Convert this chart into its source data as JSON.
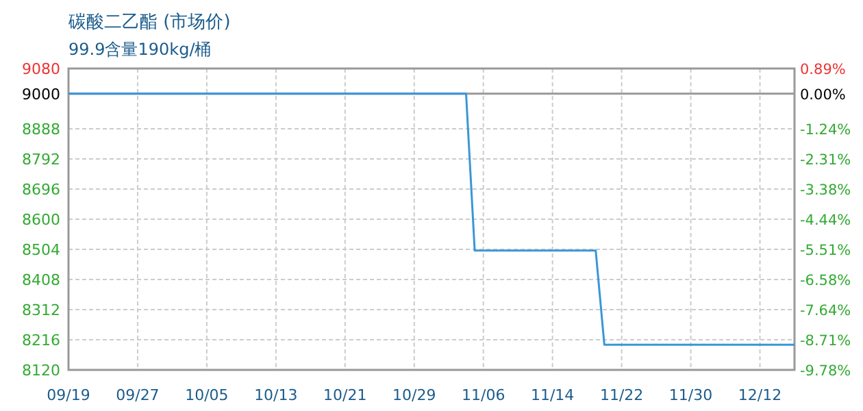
{
  "chart_data": {
    "type": "line",
    "title": "碳酸二乙酯 (市场价)",
    "subtitle": "99.9含量190kg/桶",
    "categories": [
      "09/19",
      null,
      null,
      null,
      null,
      null,
      null,
      null,
      "09/27",
      null,
      null,
      null,
      null,
      null,
      null,
      null,
      "10/05",
      null,
      null,
      null,
      null,
      null,
      null,
      null,
      "10/13",
      null,
      null,
      null,
      null,
      null,
      null,
      null,
      "10/21",
      null,
      null,
      null,
      null,
      null,
      null,
      null,
      "10/29",
      null,
      null,
      null,
      null,
      null,
      null,
      null,
      "11/06",
      null,
      null,
      null,
      null,
      null,
      null,
      null,
      "11/14",
      null,
      null,
      null,
      null,
      null,
      null,
      null,
      "11/22",
      null,
      null,
      null,
      null,
      null,
      null,
      null,
      "11/30",
      null,
      null,
      null,
      null,
      null,
      null,
      null,
      "12/12",
      null,
      null,
      null,
      null
    ],
    "series": [
      {
        "color": "#3a96d8",
        "values": [
          9000,
          9000,
          9000,
          9000,
          9000,
          9000,
          9000,
          9000,
          9000,
          9000,
          9000,
          9000,
          9000,
          9000,
          9000,
          9000,
          9000,
          9000,
          9000,
          9000,
          9000,
          9000,
          9000,
          9000,
          9000,
          9000,
          9000,
          9000,
          9000,
          9000,
          9000,
          9000,
          9000,
          9000,
          9000,
          9000,
          9000,
          9000,
          9000,
          9000,
          9000,
          9000,
          9000,
          9000,
          9000,
          9000,
          9000,
          8500,
          8500,
          8500,
          8500,
          8500,
          8500,
          8500,
          8500,
          8500,
          8500,
          8500,
          8500,
          8500,
          8500,
          8500,
          8200,
          8200,
          8200,
          8200,
          8200,
          8200,
          8200,
          8200,
          8200,
          8200,
          8200,
          8200,
          8200,
          8200,
          8200,
          8200,
          8200,
          8200,
          8200,
          8200,
          8200,
          8200,
          8200
        ]
      }
    ],
    "ylim": [
      8120,
      9080
    ],
    "yticks": [
      8120,
      8216,
      8312,
      8408,
      8504,
      8600,
      8696,
      8792,
      8888,
      9000,
      9080
    ],
    "y2lim": [
      -9.78,
      0.89
    ],
    "y2ticks": [
      {
        "value": -9.78,
        "label": "-9.78%"
      },
      {
        "value": -8.71,
        "label": "-8.71%"
      },
      {
        "value": -7.64,
        "label": "-7.64%"
      },
      {
        "value": -6.58,
        "label": "-6.58%"
      },
      {
        "value": -5.51,
        "label": "-5.51%"
      },
      {
        "value": -4.44,
        "label": "-4.44%"
      },
      {
        "value": -3.38,
        "label": "-3.38%"
      },
      {
        "value": -2.31,
        "label": "-2.31%"
      },
      {
        "value": -1.24,
        "label": "-1.24%"
      },
      {
        "value": 0,
        "label": "0.00%"
      },
      {
        "value": 0.89,
        "label": "0.89%"
      }
    ],
    "ref_lines": [
      {
        "axis": "y",
        "value": 9000,
        "color": "#999999"
      }
    ],
    "grid": true,
    "line_style": "solid"
  }
}
